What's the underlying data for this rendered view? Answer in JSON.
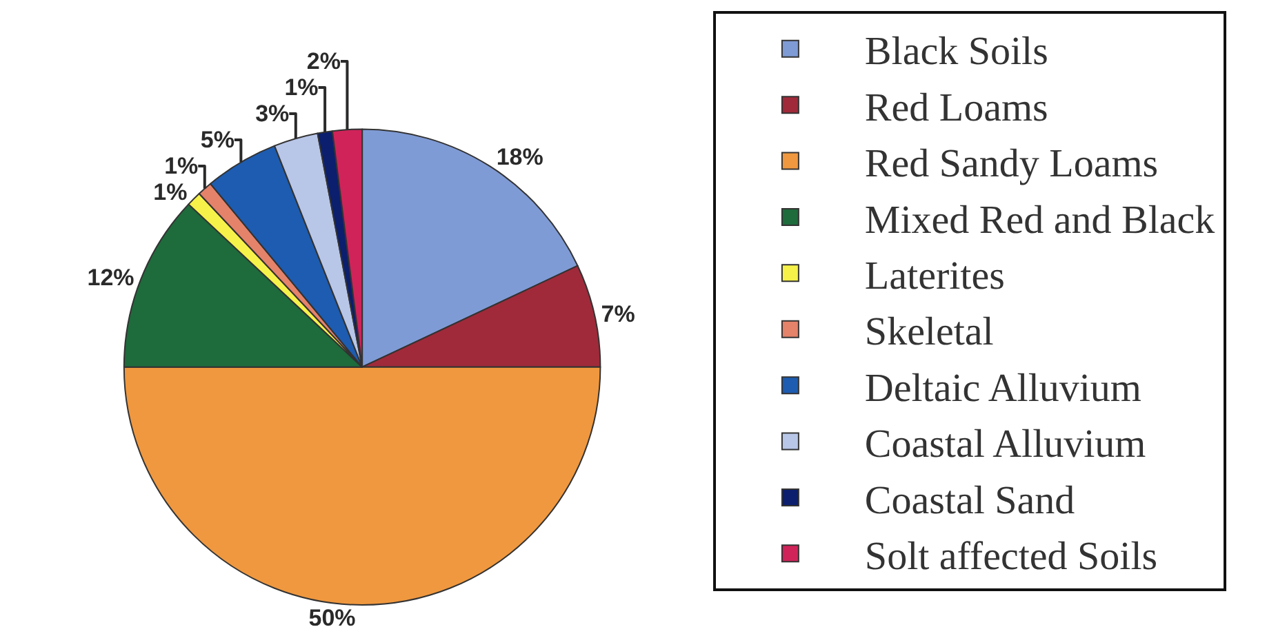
{
  "chart_data": {
    "type": "pie",
    "categories": [
      "Black Soils",
      "Red Loams",
      "Red Sandy Loams",
      "Mixed Red and Black",
      "Laterites",
      "Skeletal",
      "Deltaic Alluvium",
      "Coastal Alluvium",
      "Coastal Sand",
      "Solt affected Soils"
    ],
    "values": [
      18,
      7,
      50,
      12,
      1,
      1,
      5,
      3,
      1,
      2
    ],
    "value_labels": [
      "18%",
      "7%",
      "50%",
      "12%",
      "1%",
      "1%",
      "5%",
      "3%",
      "1%",
      "2%"
    ],
    "colors": [
      "#7f9bd6",
      "#a02a3a",
      "#f0983f",
      "#1e6b3c",
      "#f6f24a",
      "#e5826a",
      "#1d5cb0",
      "#b8c6e8",
      "#0b1f6e",
      "#d0235a"
    ],
    "legend": "right"
  }
}
